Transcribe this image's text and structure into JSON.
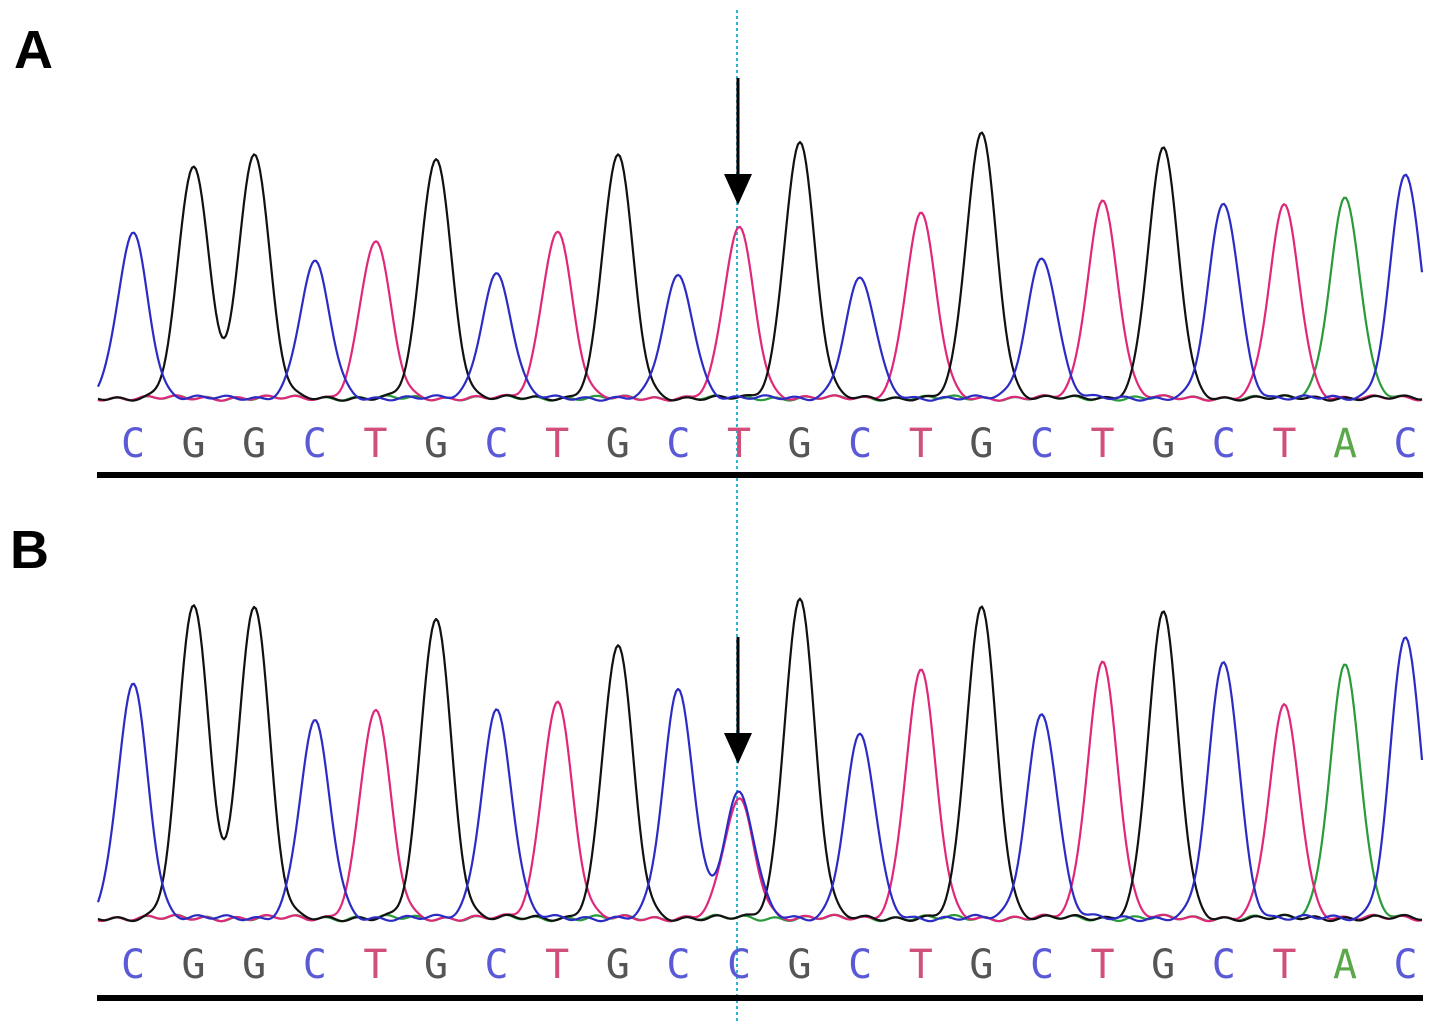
{
  "chart_data": [
    {
      "type": "line",
      "panel_label": "A",
      "sequence": [
        "C",
        "G",
        "G",
        "C",
        "T",
        "G",
        "C",
        "T",
        "G",
        "C",
        "T",
        "G",
        "C",
        "T",
        "G",
        "C",
        "T",
        "G",
        "C",
        "T",
        "A",
        "C"
      ],
      "peak_heights": [
        0.61,
        0.86,
        0.91,
        0.5,
        0.58,
        0.89,
        0.46,
        0.62,
        0.9,
        0.45,
        0.63,
        0.95,
        0.44,
        0.68,
        0.98,
        0.52,
        0.73,
        0.92,
        0.72,
        0.71,
        0.74,
        0.83
      ],
      "highlight_index": 10,
      "arrow": true
    },
    {
      "type": "line",
      "panel_label": "B",
      "sequence": [
        "C",
        "G",
        "G",
        "C",
        "T",
        "G",
        "C",
        "T",
        "G",
        "C",
        "C",
        "G",
        "C",
        "T",
        "G",
        "C",
        "T",
        "G",
        "C",
        "T",
        "A",
        "C"
      ],
      "peak_heights": [
        0.73,
        0.98,
        0.98,
        0.61,
        0.65,
        0.94,
        0.65,
        0.68,
        0.85,
        0.71,
        0.39,
        1.0,
        0.57,
        0.77,
        0.97,
        0.64,
        0.8,
        0.95,
        0.8,
        0.66,
        0.79,
        0.88
      ],
      "secondary_peak": {
        "index": 10,
        "base": "T",
        "height": 0.37
      },
      "highlight_index": 10,
      "arrow": true
    }
  ],
  "base_colors": {
    "A": "#2a9a3a",
    "C": "#2c2cc4",
    "G": "#111111",
    "T": "#e0287a"
  },
  "label_colors": {
    "A": "#5aa84a",
    "C": "#5a5ad6",
    "G": "#555555",
    "T": "#d0507a"
  },
  "marker_color": "#2fb4d4"
}
